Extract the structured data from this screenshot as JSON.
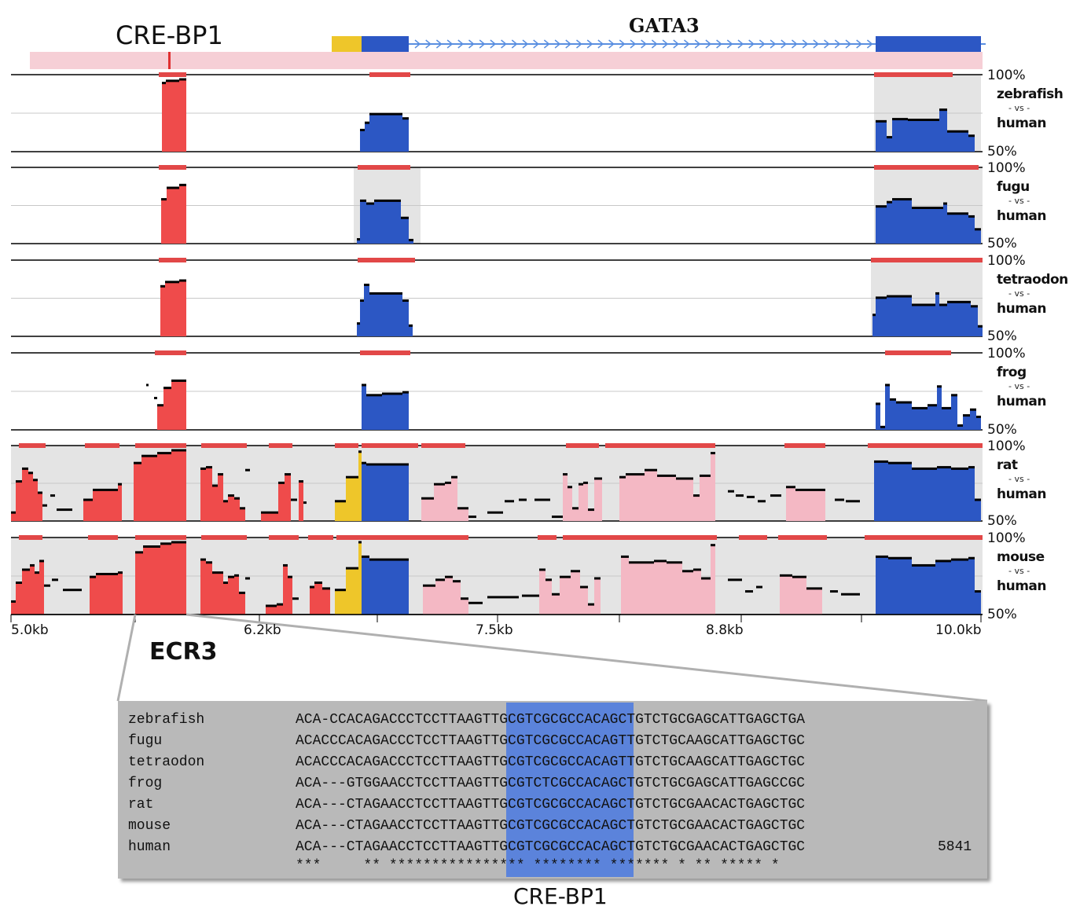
{
  "labels": {
    "cre_top": "CRE-BP1",
    "gene": "GATA3",
    "ecr": "ECR3",
    "cre_bottom": "CRE-BP1",
    "vs": "- vs -",
    "reference": "human",
    "pct_top": "100%",
    "pct_bottom": "50%"
  },
  "axis_ticks": [
    "5.0kb",
    "6.2kb",
    "7.5kb",
    "8.8kb",
    "10.0kb"
  ],
  "colors": {
    "cns": "#ef4b4b",
    "exon": "#2c57c4",
    "utr": "#eec62a",
    "intron": "#f4b8c4",
    "ecr_bar": "#e24848",
    "track_bg": "#e4e4e4",
    "gene_bar": "#f6cfd6",
    "arrow": "#5a8fe0",
    "align_highlight": "#5b83db",
    "panel": "#b9b9b9"
  },
  "tracks": [
    {
      "name": "zebrafish"
    },
    {
      "name": "fugu"
    },
    {
      "name": "tetraodon"
    },
    {
      "name": "frog"
    },
    {
      "name": "rat"
    },
    {
      "name": "mouse"
    }
  ],
  "alignment": {
    "rows": [
      {
        "name": "zebrafish",
        "seq": "ACA-CCACAGACCCTCCTTAAGTTGCGTCGCGCCACAGCTGTCTGCGAGCATTGAGCTGA"
      },
      {
        "name": "fugu",
        "seq": "ACACCCACAGACCCTCCTTAAGTTGCGTCGCGCCACAGTTGTCTGCAAGCATTGAGCTGC"
      },
      {
        "name": "tetraodon",
        "seq": "ACACCCACAGACCCTCCTTAAGTTGCGTCGCGCCACAGTTGTCTGCAAGCATTGAGCTGC"
      },
      {
        "name": "frog",
        "seq": "ACA---GTGGAACCTCCTTAAGTTGCGTCTCGCCACAGCTGTCTGCGAGCATTGAGCCGC"
      },
      {
        "name": "rat",
        "seq": "ACA---CTAGAACCTCCTTAAGTTGCGTCGCGCCACAGCTGTCTGCGAACACTGAGCTGC"
      },
      {
        "name": "mouse",
        "seq": "ACA---CTAGAACCTCCTTAAGTTGCGTCGCGCCACAGCTGTCTGCGAACACTGAGCTGC"
      },
      {
        "name": "human",
        "seq": "ACA---CTAGAACCTCCTTAAGTTGCGTCGCGCCACAGCTGTCTGCGAACACTGAGCTGC"
      }
    ],
    "conservation": "***     ** **************** ******** ******* * ** ***** *",
    "position": "5841"
  }
}
